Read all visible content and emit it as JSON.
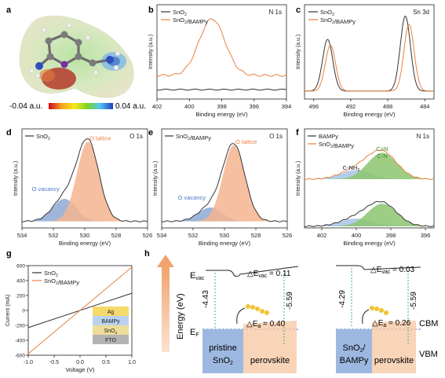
{
  "panel_letters": [
    "a",
    "b",
    "c",
    "d",
    "e",
    "f",
    "g",
    "h"
  ],
  "colorbar": {
    "min_label": "-0.04 a.u.",
    "max_label": "0.04 a.u."
  },
  "colors": {
    "black": "#333333",
    "orange": "#e8803f",
    "lattice": "#f4b48f",
    "vacancy": "#8ea9d3",
    "cn": "#8cc56f",
    "nh": "#a8c3e6"
  },
  "chart_data": [
    {
      "id": "b",
      "type": "line",
      "title": "N 1s",
      "xlabel": "Binding energy (eV)",
      "ylabel": "Intensity (a.u.)",
      "xlim": [
        402,
        394
      ],
      "xticks": [
        402,
        400,
        398,
        396,
        394
      ],
      "series": [
        {
          "name": "SnO2",
          "color": "#333333",
          "shape": "flat",
          "base": 0.1
        },
        {
          "name": "SnO2/BAMPy",
          "color": "#e8803f",
          "shape": "peak",
          "center": 398.6,
          "height": 0.85,
          "width": 0.8,
          "base": 0.25
        }
      ]
    },
    {
      "id": "c",
      "type": "line",
      "title": "Sn 3d",
      "xlabel": "Binding energy (eV)",
      "ylabel": "Intensity (a.u.)",
      "xlim": [
        497,
        483
      ],
      "xticks": [
        496,
        492,
        488,
        484
      ],
      "series": [
        {
          "name": "SnO2",
          "color": "#333333",
          "peaks": [
            [
              494.5,
              0.62,
              0.55
            ],
            [
              486.1,
              0.9,
              0.55
            ]
          ]
        },
        {
          "name": "SnO2/BAMPy",
          "color": "#e8803f",
          "peaks": [
            [
              494.2,
              0.55,
              0.55
            ],
            [
              485.7,
              0.8,
              0.55
            ]
          ]
        }
      ]
    },
    {
      "id": "d",
      "type": "line",
      "title": "O 1s",
      "xlabel": "Binding energy (eV)",
      "ylabel": "Intensity (a.u.)",
      "xlim": [
        534,
        526
      ],
      "xticks": [
        534,
        532,
        530,
        528,
        526
      ],
      "legend": [
        "SnO2"
      ],
      "fit_labels": {
        "lattice": "O lattice",
        "vacancy": "O vacancy"
      },
      "components": [
        {
          "name": "O vacancy",
          "center": 531.3,
          "height": 0.26,
          "width": 0.75,
          "color": "#8ea9d3"
        },
        {
          "name": "O lattice",
          "center": 529.8,
          "height": 0.92,
          "width": 0.7,
          "color": "#f4b48f"
        }
      ]
    },
    {
      "id": "e",
      "type": "line",
      "title": "O 1s",
      "xlabel": "Binding energy (eV)",
      "ylabel": "Intensity (a.u.)",
      "xlim": [
        534,
        526
      ],
      "xticks": [
        534,
        532,
        530,
        528,
        526
      ],
      "legend": [
        "SnO2/BAMPy"
      ],
      "fit_labels": {
        "lattice": "O lattice",
        "vacancy": "O vacancy"
      },
      "components": [
        {
          "name": "O vacancy",
          "center": 530.9,
          "height": 0.16,
          "width": 0.75,
          "color": "#8ea9d3"
        },
        {
          "name": "O lattice",
          "center": 529.4,
          "height": 0.88,
          "width": 0.7,
          "color": "#f4b48f"
        }
      ]
    },
    {
      "id": "f",
      "type": "line",
      "title": "N 1s",
      "xlabel": "Binding energy (eV)",
      "ylabel": "Intensity (a.u.)",
      "xlim": [
        403,
        395.5
      ],
      "xticks": [
        402,
        400,
        398,
        396
      ],
      "legend": [
        "BAMPy",
        "SnO2/BAMPy"
      ],
      "fit_labels": {
        "cn1": "C=N",
        "cn2": "C-N",
        "nh": "C-NH2"
      },
      "components": [
        {
          "name": "C-NH2",
          "center": 400.0,
          "height": 0.2,
          "width": 0.9,
          "color": "#a8c3e6"
        },
        {
          "name": "C=N",
          "center": 398.5,
          "height": 0.58,
          "width": 0.85,
          "color": "#8cc56f"
        }
      ]
    },
    {
      "id": "g",
      "type": "line",
      "xlabel": "Voltage (V)",
      "ylabel": "Current (mA)",
      "xlim": [
        -1.0,
        1.0
      ],
      "ylim": [
        -600,
        600
      ],
      "xticks": [
        -1.0,
        -0.5,
        0.0,
        0.5,
        1.0
      ],
      "yticks": [
        -600,
        -400,
        -200,
        0,
        200,
        400,
        600
      ],
      "series": [
        {
          "name": "SnO2",
          "color": "#333333",
          "x": [
            -1.0,
            1.0
          ],
          "y": [
            -230,
            230
          ]
        },
        {
          "name": "SnO2/BAMPy",
          "color": "#e8803f",
          "x": [
            -1.0,
            1.0
          ],
          "y": [
            -580,
            580
          ]
        }
      ],
      "inset_layers": [
        "Ag",
        "BAMPy",
        "SnO2",
        "FTO"
      ],
      "inset_colors": [
        "#f6d96b",
        "#b9d3ef",
        "#eddc9a",
        "#b3b3b3"
      ]
    }
  ],
  "diagram_h": {
    "yaxis_label": "Energy (eV)",
    "evac": "E",
    "evac_sub": "vac",
    "ef": "E",
    "ef_sub": "F",
    "left": {
      "wf": "-4.43",
      "wf2": "-5.59",
      "dvac_pre": "△E",
      "dvac_sub": "vac",
      "dvac_val": " = 0.11",
      "dea_pre": "△E",
      "dea_sub": "a",
      "dea_val": " = 0.40",
      "box1": "pristine",
      "box2": "SnO",
      "box2_sub": "2",
      "perov": "perovskite"
    },
    "right": {
      "wf": "-4.29",
      "wf2": "-5.59",
      "dvac_pre": "△E",
      "dvac_sub": "vac",
      "dvac_val": " = 0.03",
      "dea_pre": "△E",
      "dea_sub": "a",
      "dea_val": " = 0.26",
      "box1": "SnO",
      "box1_sub": "2",
      "box1_end": "/",
      "box2": "BAMPy",
      "perov": "perovskite"
    },
    "cbm": "CBM",
    "vbm": "VBM"
  }
}
